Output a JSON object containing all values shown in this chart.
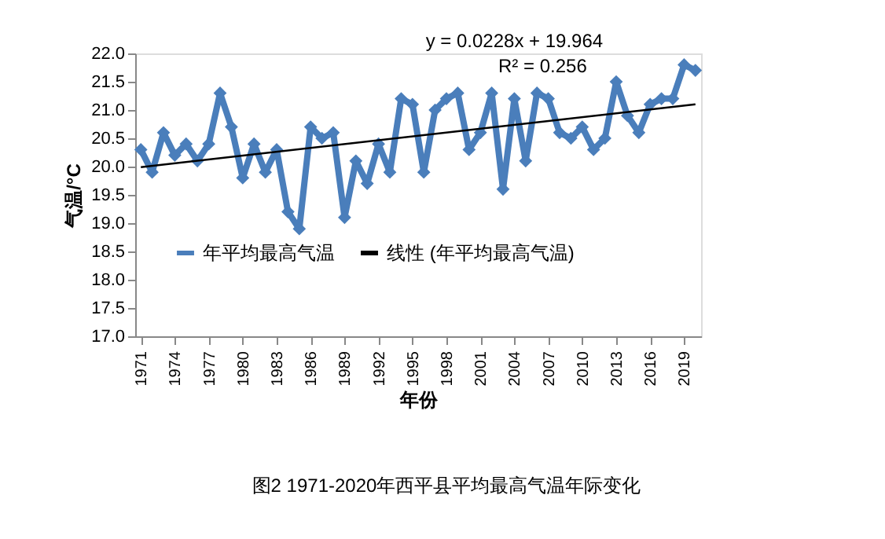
{
  "chart_data": {
    "type": "line",
    "xlabel": "年份",
    "ylabel": "气温/°C",
    "x": [
      1971,
      1972,
      1973,
      1974,
      1975,
      1976,
      1977,
      1978,
      1979,
      1980,
      1981,
      1982,
      1983,
      1984,
      1985,
      1986,
      1987,
      1988,
      1989,
      1990,
      1991,
      1992,
      1993,
      1994,
      1995,
      1996,
      1997,
      1998,
      1999,
      2000,
      2001,
      2002,
      2003,
      2004,
      2005,
      2006,
      2007,
      2008,
      2009,
      2010,
      2011,
      2012,
      2013,
      2014,
      2015,
      2016,
      2017,
      2018,
      2019,
      2020
    ],
    "series": [
      {
        "name": "年平均最高气温",
        "color": "#4a7ebb",
        "marker": "diamond",
        "values": [
          20.3,
          19.9,
          20.6,
          20.2,
          20.4,
          20.1,
          20.4,
          21.3,
          20.7,
          19.8,
          20.4,
          19.9,
          20.3,
          19.2,
          18.9,
          20.7,
          20.5,
          20.6,
          19.1,
          20.1,
          19.7,
          20.4,
          19.9,
          21.2,
          21.1,
          19.9,
          21.0,
          21.2,
          21.3,
          20.3,
          20.6,
          21.3,
          19.6,
          21.2,
          20.1,
          21.3,
          21.2,
          20.6,
          20.5,
          20.7,
          20.3,
          20.5,
          21.5,
          20.9,
          20.6,
          21.1,
          21.2,
          21.2,
          21.8,
          21.7
        ]
      },
      {
        "name": "线性 (年平均最高气温)",
        "color": "#000000",
        "type": "line",
        "marker": "none",
        "x": [
          1971,
          2020
        ],
        "values": [
          19.99,
          21.1
        ]
      }
    ],
    "xlim": [
      1970.5,
      2020.5
    ],
    "xticks": [
      1971,
      1974,
      1977,
      1980,
      1983,
      1986,
      1989,
      1992,
      1995,
      1998,
      2001,
      2004,
      2007,
      2010,
      2013,
      2016,
      2019
    ],
    "ylim": [
      17.0,
      22.0
    ],
    "yticks": [
      {
        "value": 17,
        "label": "17.0"
      },
      {
        "value": 17.5,
        "label": "17.5"
      },
      {
        "value": 18,
        "label": "18.0"
      },
      {
        "value": 18.5,
        "label": "18.5"
      },
      {
        "value": 19,
        "label": "19.0"
      },
      {
        "value": 19.5,
        "label": "19.5"
      },
      {
        "value": 20,
        "label": "20.0"
      },
      {
        "value": 20.5,
        "label": "20.5"
      },
      {
        "value": 21,
        "label": "21.0"
      },
      {
        "value": 21.5,
        "label": "21.5"
      },
      {
        "value": 22,
        "label": "22.0"
      }
    ],
    "grid": false,
    "legend": "bottom",
    "annotations": [
      "y = 0.0228x + 19.964",
      "R² = 0.256",
      "图2 1971-2020年西平县平均最高气温年际变化"
    ]
  }
}
